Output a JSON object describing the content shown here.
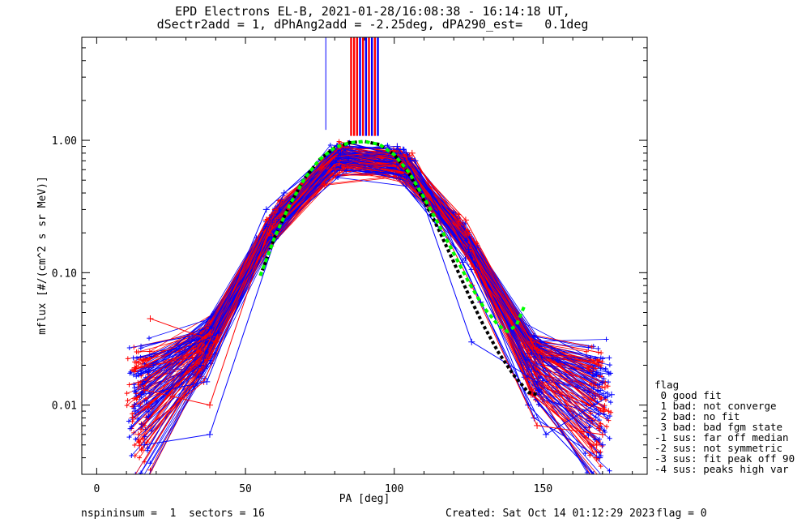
{
  "header": {
    "title_line1": "EPD Electrons EL-B, 2021-01-28/16:08:38 - 16:14:18 UT,",
    "title_line2": "dSectr2add = 1, dPhAng2add = -2.25deg, dPA290_est=   0.1deg"
  },
  "footer": {
    "left": "nspininsum =  1  sectors = 16",
    "created": "Created: Sat Oct 14 01:12:29 2023",
    "flag": "flag = 0"
  },
  "legend": {
    "title": "flag",
    "items": [
      " 0 good fit",
      " 1 bad: not converge",
      " 2 bad: no fit",
      " 3 bad: bad fgm state",
      "-1 sus: far off median",
      "-2 sus: not symmetric",
      "-3 sus: fit peak off 90",
      "-4 sus: peaks high var"
    ]
  },
  "colors": {
    "red": "#ff0000",
    "blue": "#0000ff",
    "fit_black": "#000000",
    "fit_green": "#00ff00"
  },
  "chart_data": {
    "type": "line",
    "title": "EPD Electrons EL-B, 2021-01-28/16:08:38 - 16:14:18 UT,",
    "xlabel": "PA [deg]",
    "ylabel": "mflux [#/(cm^2 s sr MeV)]",
    "xlim": [
      -5,
      185
    ],
    "ylim": [
      0.003,
      6
    ],
    "yscale": "log",
    "xticks": [
      0,
      50,
      100,
      150
    ],
    "xtick_labels": [
      "0",
      "50",
      "100",
      "150"
    ],
    "yticks": [
      0.01,
      0.1,
      1.0
    ],
    "ytick_labels": [
      "0.01",
      "0.10",
      "1.00"
    ],
    "vertical_marks": [
      {
        "x": 77,
        "color": "blue"
      },
      {
        "x": 85.5,
        "color": "red"
      },
      {
        "x": 86.5,
        "color": "red"
      },
      {
        "x": 87.5,
        "color": "red"
      },
      {
        "x": 88.5,
        "color": "blue"
      },
      {
        "x": 89.5,
        "color": "red"
      },
      {
        "x": 90.5,
        "color": "blue"
      },
      {
        "x": 91.5,
        "color": "red"
      },
      {
        "x": 92.5,
        "color": "blue"
      },
      {
        "x": 93.5,
        "color": "red"
      },
      {
        "x": 94.5,
        "color": "blue"
      }
    ],
    "sample_series": [
      {
        "color": "red",
        "x": [
          12,
          34,
          57,
          79,
          101,
          124,
          146,
          168
        ],
        "y": [
          0.008,
          0.02,
          0.25,
          0.85,
          0.9,
          0.2,
          0.012,
          0.005
        ]
      },
      {
        "color": "red",
        "x": [
          18,
          40,
          62,
          84,
          106,
          128,
          150,
          172
        ],
        "y": [
          0.045,
          0.03,
          0.35,
          0.9,
          0.8,
          0.1,
          0.02,
          0.009
        ]
      },
      {
        "color": "red",
        "x": [
          14,
          36,
          58,
          80,
          102,
          124,
          146,
          168
        ],
        "y": [
          0.006,
          0.015,
          0.2,
          0.75,
          0.85,
          0.25,
          0.03,
          0.004
        ]
      },
      {
        "color": "blue",
        "x": [
          15,
          37,
          59,
          81,
          103,
          125,
          147,
          169
        ],
        "y": [
          0.012,
          0.015,
          0.25,
          0.9,
          0.85,
          0.15,
          0.008,
          0.004
        ]
      },
      {
        "color": "blue",
        "x": [
          19,
          41,
          63,
          85,
          107,
          129,
          151,
          173
        ],
        "y": [
          0.02,
          0.035,
          0.4,
          0.95,
          0.7,
          0.06,
          0.006,
          0.012
        ]
      },
      {
        "color": "blue",
        "x": [
          16,
          38,
          60,
          82,
          104,
          126,
          148,
          170
        ],
        "y": [
          0.005,
          0.006,
          0.18,
          0.8,
          0.8,
          0.03,
          0.015,
          0.005
        ]
      },
      {
        "color": "blue",
        "x": [
          13,
          35,
          57,
          79,
          101,
          123,
          145,
          167
        ],
        "y": [
          0.009,
          0.02,
          0.3,
          0.85,
          0.9,
          0.12,
          0.01,
          0.003
        ]
      },
      {
        "color": "red",
        "x": [
          16,
          38,
          60,
          82,
          104,
          126,
          148,
          170
        ],
        "y": [
          0.013,
          0.01,
          0.3,
          0.9,
          0.75,
          0.08,
          0.007,
          0.006
        ]
      }
    ],
    "fit_curves": [
      {
        "name": "",
        "color": "black",
        "x": [
          55,
          60,
          65,
          70,
          75,
          80,
          85,
          90,
          95,
          100,
          105,
          110,
          115,
          120,
          125,
          130,
          135,
          140,
          145,
          148
        ],
        "y": [
          0.095,
          0.19,
          0.33,
          0.52,
          0.72,
          0.88,
          0.96,
          0.98,
          0.93,
          0.78,
          0.56,
          0.35,
          0.21,
          0.12,
          0.068,
          0.04,
          0.025,
          0.017,
          0.0125,
          0.012
        ]
      },
      {
        "name": "",
        "color": "green",
        "x": [
          55,
          60,
          65,
          70,
          75,
          80,
          85,
          90,
          95,
          100,
          105,
          110,
          115,
          120,
          125,
          130,
          135,
          138,
          141,
          144
        ],
        "y": [
          0.095,
          0.19,
          0.33,
          0.52,
          0.72,
          0.88,
          0.96,
          0.98,
          0.93,
          0.78,
          0.57,
          0.37,
          0.23,
          0.14,
          0.085,
          0.055,
          0.04,
          0.036,
          0.04,
          0.058
        ]
      }
    ]
  }
}
